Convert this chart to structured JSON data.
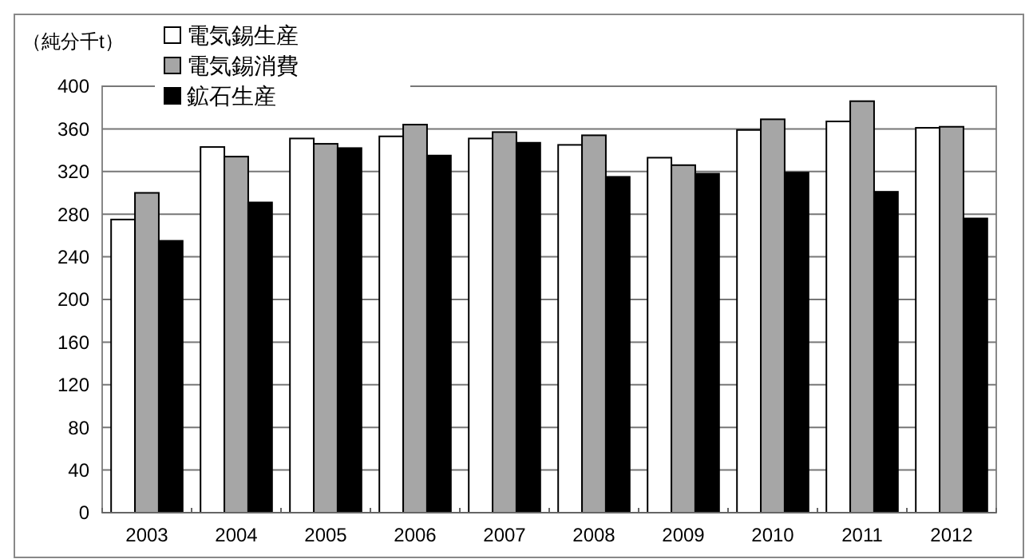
{
  "chart_data": {
    "type": "bar",
    "ylabel": "（純分千t）",
    "categories": [
      "2003",
      "2004",
      "2005",
      "2006",
      "2007",
      "2008",
      "2009",
      "2010",
      "2011",
      "2012"
    ],
    "series": [
      {
        "name": "電気錫生産",
        "color": "#ffffff",
        "values": [
          275,
          343,
          351,
          353,
          351,
          345,
          333,
          359,
          367,
          361
        ]
      },
      {
        "name": "電気錫消費",
        "color": "#a6a6a6",
        "values": [
          300,
          334,
          346,
          364,
          357,
          354,
          326,
          369,
          386,
          362
        ]
      },
      {
        "name": "鉱石生産",
        "color": "#000000",
        "values": [
          255,
          291,
          342,
          335,
          347,
          315,
          318,
          319,
          301,
          276
        ]
      }
    ],
    "ylim": [
      0,
      400
    ],
    "yticks": [
      0,
      40,
      80,
      120,
      160,
      200,
      240,
      280,
      320,
      360,
      400
    ],
    "grid": "y",
    "legend": "top left"
  }
}
